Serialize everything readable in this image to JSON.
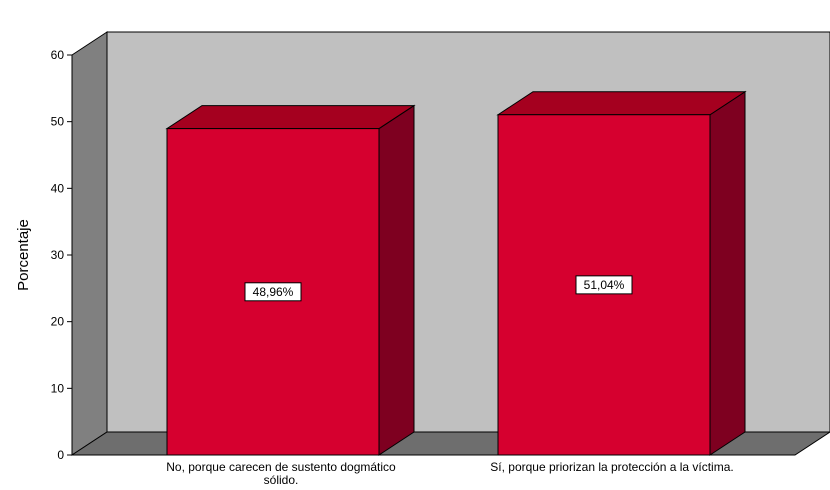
{
  "chart_data": {
    "type": "bar",
    "style": "3d",
    "categories": [
      [
        "No, porque carecen de sustento dogmático",
        "sólido."
      ],
      [
        "Sí, porque priorizan la protección a la víctima."
      ]
    ],
    "values": [
      48.96,
      51.04
    ],
    "data_labels": [
      "48,96%",
      "51,04%"
    ],
    "ylabel": "Porcentaje",
    "xlabel": "",
    "title": "",
    "ylim": [
      0,
      60
    ],
    "yticks": [
      0,
      10,
      20,
      30,
      40,
      50,
      60
    ],
    "grid": false,
    "legend": "none",
    "colors": {
      "bar_front": "#d6002f",
      "bar_top": "#a5001f",
      "bar_side": "#7e0020",
      "back_wall": "#c0c0c0",
      "side_wall": "#808080",
      "floor": "#6e6e6e",
      "outline": "#000000",
      "label_box": "#ffffff"
    }
  }
}
